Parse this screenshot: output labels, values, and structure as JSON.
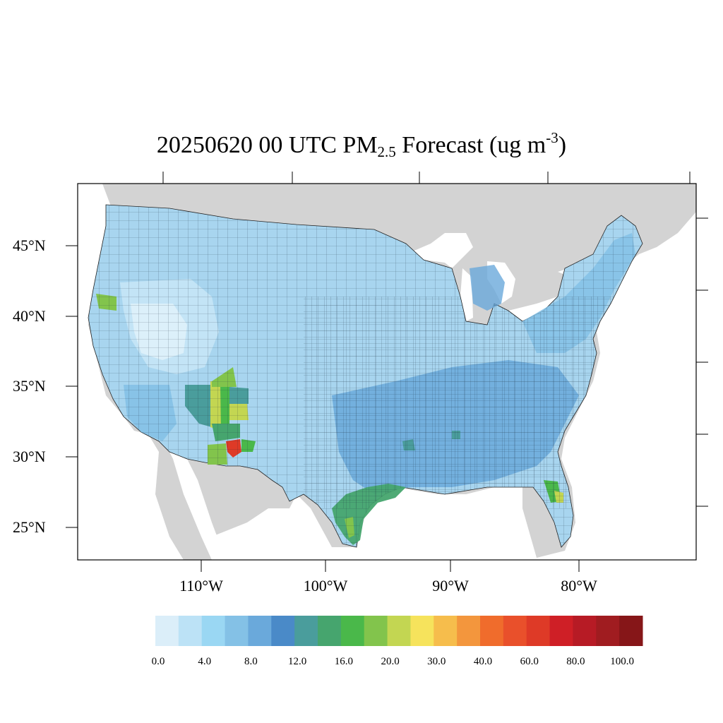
{
  "title": {
    "main": "20250620 00 UTC PM",
    "main_subscript": "2.5",
    "main_suffix": " Forecast (ug m",
    "unit_superscript": "-3",
    "unit_close": ")"
  },
  "map": {
    "region": "Contiguous United States",
    "land_background": "#d3d3d3",
    "water": "#ffffff",
    "lat_labels": [
      "45°N",
      "40°N",
      "35°N",
      "30°N",
      "25°N"
    ],
    "lon_labels": [
      "110°W",
      "100°W",
      "90°W",
      "80°W"
    ],
    "hotspots": [
      {
        "area": "Northern California county",
        "level": "20.0"
      },
      {
        "area": "Arizona / New Mexico counties",
        "level": "16.0–30.0"
      },
      {
        "area": "Southern New Mexico county",
        "level": "60.0"
      },
      {
        "area": "Texas Gulf coast",
        "level": "12.0–16.0"
      },
      {
        "area": "Central Florida",
        "level": "20.0–30.0"
      }
    ]
  },
  "colorbar": {
    "colors": [
      "#dbeef9",
      "#bce2f6",
      "#9ad7f3",
      "#84c1e6",
      "#6aa9db",
      "#4a8ac8",
      "#4a9d9c",
      "#46a56e",
      "#4ab84a",
      "#82c44c",
      "#c3d652",
      "#f6e35c",
      "#f6bd4c",
      "#f3963d",
      "#f06c2c",
      "#e9502b",
      "#de3a27",
      "#cf1f26",
      "#b71b25",
      "#a01c20",
      "#861618"
    ],
    "labels": [
      "0.0",
      "4.0",
      "8.0",
      "12.0",
      "16.0",
      "20.0",
      "30.0",
      "40.0",
      "60.0",
      "80.0",
      "100.0"
    ]
  }
}
